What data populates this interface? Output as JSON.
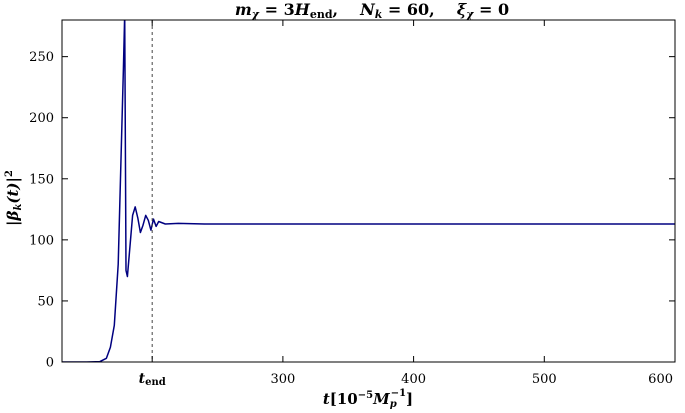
{
  "chart_data": {
    "type": "line",
    "title": {
      "m_sym": "m",
      "m_sub": "χ",
      "m_rhs": " = 3",
      "h_sym": "H",
      "h_sub": "end",
      "sep1": ",",
      "n_sym": "N",
      "n_sub": "k",
      "n_rhs": " = 60",
      "sep2": ",",
      "xi_sym": "ξ",
      "xi_sub": "χ",
      "xi_rhs": " = 0"
    },
    "xlabel": {
      "t": "t",
      "open": "[10",
      "exp": "−5",
      "m": "M",
      "sub": "p",
      "exp2": "−1",
      "close": "]"
    },
    "ylabel": {
      "open": "|",
      "beta": "β",
      "sub": "k",
      "arg": "(t)|",
      "exp": "2"
    },
    "xlim": [
      131,
      600
    ],
    "ylim": [
      0,
      280
    ],
    "y_ticks": [
      {
        "v": 0,
        "label": "0"
      },
      {
        "v": 50,
        "label": "50"
      },
      {
        "v": 100,
        "label": "100"
      },
      {
        "v": 150,
        "label": "150"
      },
      {
        "v": 200,
        "label": "200"
      },
      {
        "v": 250,
        "label": "250"
      }
    ],
    "x_ticks": [
      {
        "v": 300,
        "label": "300"
      },
      {
        "v": 400,
        "label": "400"
      },
      {
        "v": 500,
        "label": "500"
      },
      {
        "v": 600,
        "label": "600"
      }
    ],
    "t_end": {
      "x": 200,
      "label_sym": "t",
      "label_sub": "end"
    },
    "series": [
      {
        "color": "#000080",
        "x": [
          131,
          150,
          160,
          165,
          168,
          171,
          174,
          176,
          178,
          179,
          180,
          181,
          183,
          185,
          187,
          189,
          191,
          193,
          195,
          197,
          199,
          201,
          203,
          205,
          210,
          220,
          240,
          300,
          400,
          500,
          600
        ],
        "y": [
          0,
          0,
          0.3,
          3,
          12,
          30,
          80,
          160,
          240,
          285,
          75,
          70,
          95,
          120,
          127,
          118,
          106,
          112,
          120,
          116,
          108,
          117,
          111,
          115,
          113,
          113.5,
          113,
          113,
          113,
          113,
          113
        ]
      }
    ]
  }
}
